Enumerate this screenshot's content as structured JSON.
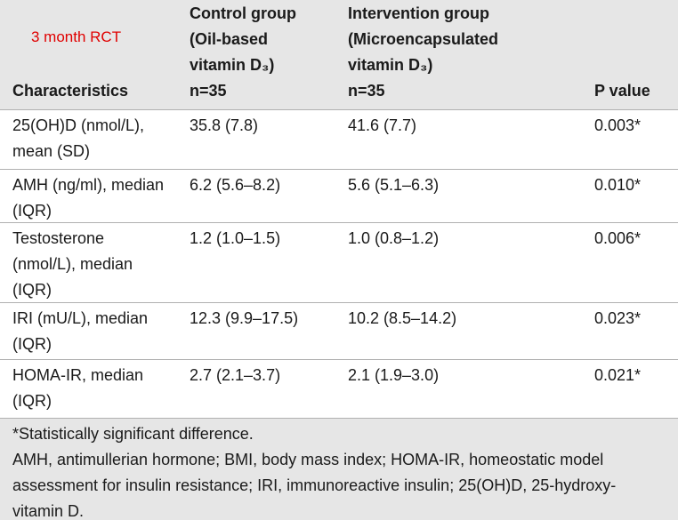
{
  "header": {
    "note": "3 month RCT",
    "columns": [
      [
        "Characteristics"
      ],
      [
        "Control group",
        "(Oil-based",
        "vitamin D₃)",
        "n=35"
      ],
      [
        "Intervention group",
        "(Microencapsulated",
        "vitamin D₃)",
        "n=35"
      ],
      [
        "P value"
      ]
    ]
  },
  "table": {
    "rows": [
      [
        [
          "25(OH)D (nmol/L),",
          "mean (SD)"
        ],
        "35.8 (7.8)",
        "41.6 (7.7)",
        "0.003*"
      ],
      [
        [
          "AMH (ng/ml), median",
          "(IQR)"
        ],
        "6.2 (5.6–8.2)",
        "5.6 (5.1–6.3)",
        "0.010*"
      ],
      [
        [
          "Testosterone",
          "(nmol/L), median",
          "(IQR)"
        ],
        "1.2 (1.0–1.5)",
        "1.0 (0.8–1.2)",
        "0.006*"
      ],
      [
        [
          "IRI (mU/L), median",
          "(IQR)"
        ],
        "12.3 (9.9–17.5)",
        "10.2 (8.5–14.2)",
        "0.023*"
      ],
      [
        [
          "HOMA-IR, median",
          "(IQR)"
        ],
        "2.7 (2.1–3.7)",
        "2.1 (1.9–3.0)",
        "0.021*"
      ]
    ]
  },
  "footer": {
    "lines": [
      "*Statistically significant difference.",
      "AMH, antimullerian hormone; BMI, body mass index; HOMA-IR, homeostatic model",
      "assessment for insulin resistance; IRI, immunoreactive insulin; 25(OH)D, 25-hydroxy-",
      "vitamin D."
    ]
  }
}
